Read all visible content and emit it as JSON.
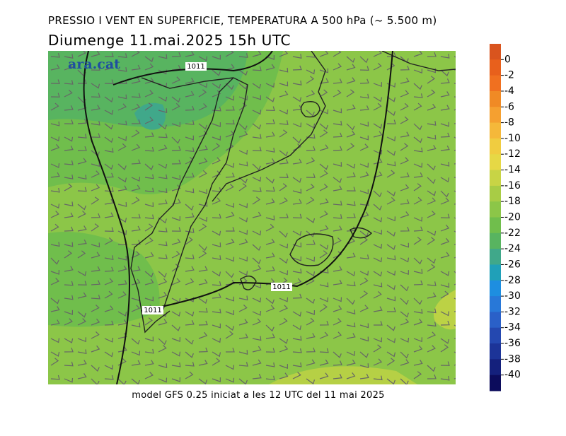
{
  "title": "PRESSIO I VENT EN SUPERFICIE, TEMPERATURA A 500 hPa (~ 5.500 m)",
  "subtitle": "Diumenge  11.mai.2025  15h  UTC",
  "logo": "ara.cat",
  "isobar_labels": [
    "1011",
    "1011",
    "1011"
  ],
  "footer": "model GFS 0.25 iniciat a les 12 UTC del 11 mai 2025",
  "colorbar": {
    "ticks": [
      0,
      -2,
      -4,
      -6,
      -8,
      -10,
      -12,
      -14,
      -16,
      -18,
      -20,
      -22,
      -24,
      -26,
      -28,
      -30,
      -32,
      -34,
      -36,
      -38,
      -40
    ],
    "colors": [
      "#d9541e",
      "#e8601c",
      "#f07020",
      "#f08a25",
      "#f5a030",
      "#f5b83a",
      "#f0cc40",
      "#e6d845",
      "#c8d445",
      "#a8cc45",
      "#8cc648",
      "#70be4c",
      "#58b460",
      "#40a88a",
      "#20a0b8",
      "#1e8ee0",
      "#2878d8",
      "#2a60c8",
      "#2448b0",
      "#1c3498",
      "#14207c",
      "#0c0c5c"
    ]
  }
}
